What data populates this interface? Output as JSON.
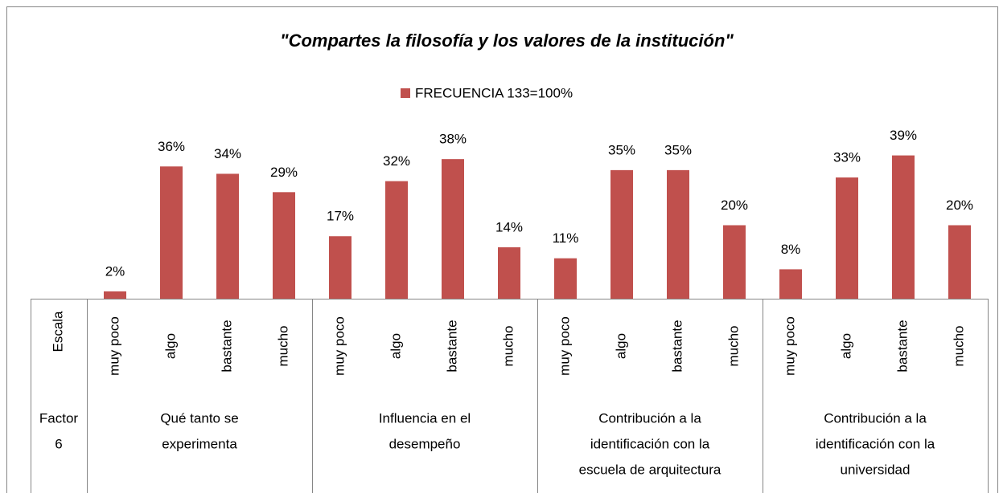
{
  "chart_data": {
    "type": "bar",
    "title": "\"Compartes la filosofía y los valores de la institución\"",
    "series": [
      {
        "name": "FRECUENCIA 133=100%",
        "color": "#c0504d",
        "values": [
          2,
          36,
          34,
          29,
          17,
          32,
          38,
          14,
          11,
          35,
          35,
          20,
          8,
          33,
          39,
          20
        ],
        "value_labels": [
          "2%",
          "36%",
          "34%",
          "29%",
          "17%",
          "32%",
          "38%",
          "14%",
          "11%",
          "35%",
          "35%",
          "20%",
          "8%",
          "33%",
          "39%",
          "20%"
        ]
      }
    ],
    "categories": [
      "muy poco",
      "algo",
      "bastante",
      "mucho",
      "muy poco",
      "algo",
      "bastante",
      "mucho",
      "muy poco",
      "algo",
      "bastante",
      "mucho",
      "muy poco",
      "algo",
      "bastante",
      "mucho"
    ],
    "level_names": {
      "scale": "Escala",
      "factor": [
        "Factor",
        "6"
      ]
    },
    "groups": [
      {
        "lines": [
          "Qué tanto se",
          "experimenta"
        ],
        "size": 4
      },
      {
        "lines": [
          "Influencia en el",
          "desempeño"
        ],
        "size": 4
      },
      {
        "lines": [
          "Contribución a la",
          "identificación con la",
          "escuela de arquitectura"
        ],
        "size": 4
      },
      {
        "lines": [
          "Contribución a la",
          "identificación con la",
          "universidad"
        ],
        "size": 4
      }
    ],
    "ylim": [
      0,
      80
    ]
  }
}
